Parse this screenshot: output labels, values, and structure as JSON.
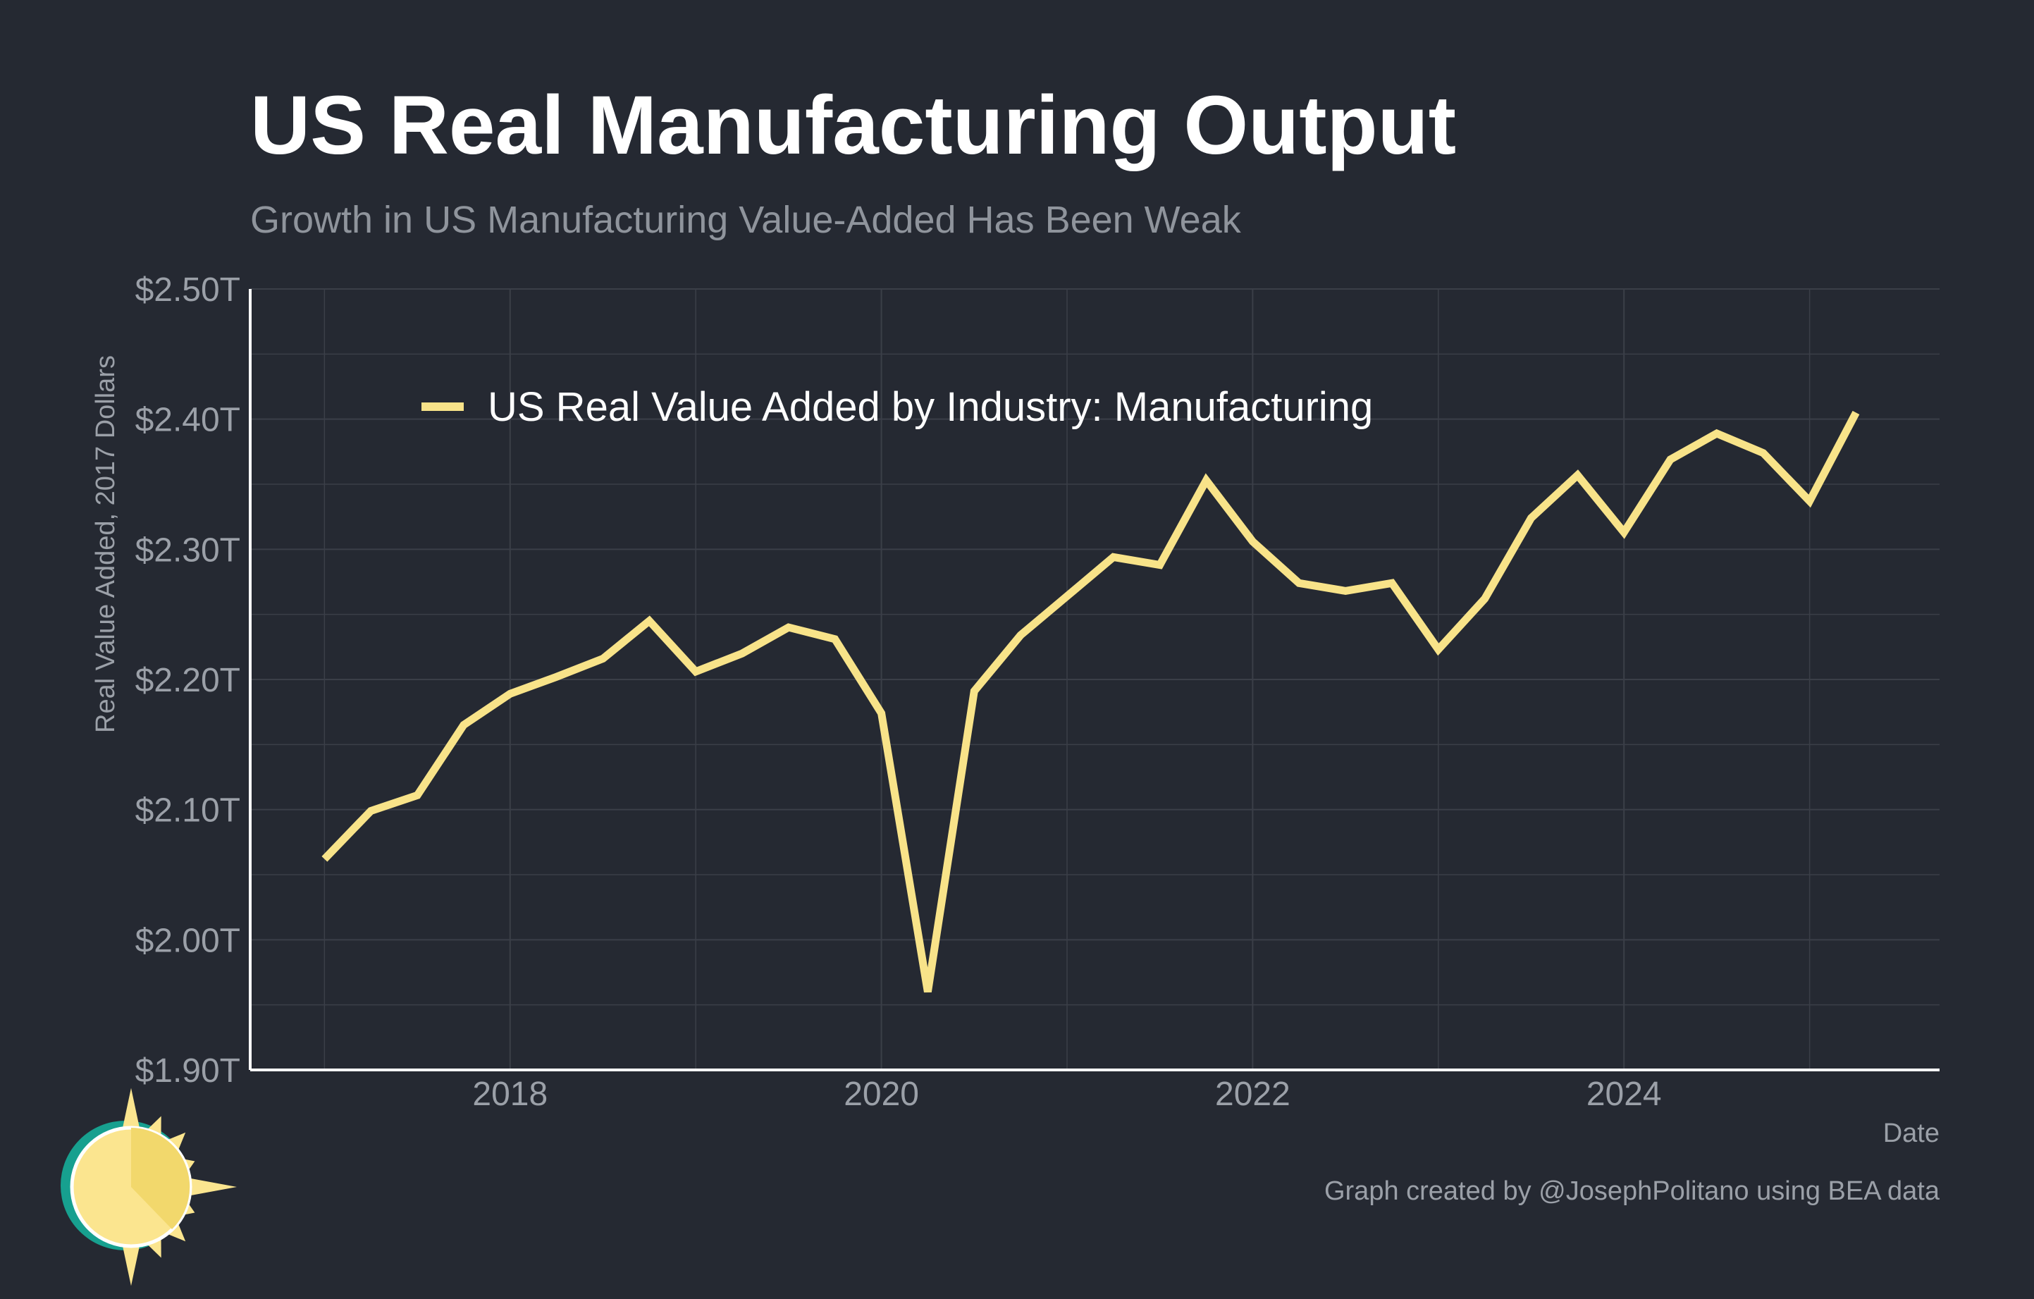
{
  "header": {
    "title": "US Real Manufacturing Output",
    "subtitle": "Growth in US Manufacturing Value-Added Has Been Weak"
  },
  "caption": "Graph created by @JosephPolitano using BEA data",
  "colors": {
    "background": "#252932",
    "series": "#f8e389",
    "grid": "#3b3f48",
    "axis": "#ffffff",
    "logo_teal": "#17a08f",
    "logo_sun": "#fbe58f"
  },
  "chart_data": {
    "type": "line",
    "xlabel": "Date",
    "ylabel": "Real Value Added, 2017 Dollars",
    "xlim": [
      2016.6,
      2025.7
    ],
    "ylim": [
      1.9,
      2.5
    ],
    "x_ticks": [
      2018,
      2020,
      2022,
      2024
    ],
    "x_tick_labels": [
      "2018",
      "2020",
      "2022",
      "2024"
    ],
    "y_ticks": [
      1.9,
      2.0,
      2.1,
      2.2,
      2.3,
      2.4,
      2.5
    ],
    "y_tick_labels": [
      "$1.90T",
      "$2.00T",
      "$2.10T",
      "$2.20T",
      "$2.30T",
      "$2.40T",
      "$2.50T"
    ],
    "grid": true,
    "legend_position": "top-left",
    "series": [
      {
        "name": "US Real Value Added by Industry: Manufacturing",
        "color": "#f8e389",
        "points": [
          [
            "2017-Q1",
            2.062
          ],
          [
            "2017-Q2",
            2.099
          ],
          [
            "2017-Q3",
            2.111
          ],
          [
            "2017-Q4",
            2.165
          ],
          [
            "2018-Q1",
            2.189
          ],
          [
            "2018-Q2",
            2.202
          ],
          [
            "2018-Q3",
            2.216
          ],
          [
            "2018-Q4",
            2.245
          ],
          [
            "2019-Q1",
            2.206
          ],
          [
            "2019-Q2",
            2.22
          ],
          [
            "2019-Q3",
            2.24
          ],
          [
            "2019-Q4",
            2.231
          ],
          [
            "2020-Q1",
            2.174
          ],
          [
            "2020-Q2",
            1.96
          ],
          [
            "2020-Q3",
            2.191
          ],
          [
            "2020-Q4",
            2.234
          ],
          [
            "2021-Q1",
            2.264
          ],
          [
            "2021-Q2",
            2.294
          ],
          [
            "2021-Q3",
            2.288
          ],
          [
            "2021-Q4",
            2.353
          ],
          [
            "2022-Q1",
            2.306
          ],
          [
            "2022-Q2",
            2.274
          ],
          [
            "2022-Q3",
            2.268
          ],
          [
            "2022-Q4",
            2.274
          ],
          [
            "2023-Q1",
            2.223
          ],
          [
            "2023-Q2",
            2.262
          ],
          [
            "2023-Q3",
            2.324
          ],
          [
            "2023-Q4",
            2.357
          ],
          [
            "2024-Q1",
            2.313
          ],
          [
            "2024-Q2",
            2.369
          ],
          [
            "2024-Q3",
            2.389
          ],
          [
            "2024-Q4",
            2.374
          ],
          [
            "2025-Q1",
            2.337
          ],
          [
            "2025-Q2",
            2.405
          ]
        ]
      }
    ]
  }
}
